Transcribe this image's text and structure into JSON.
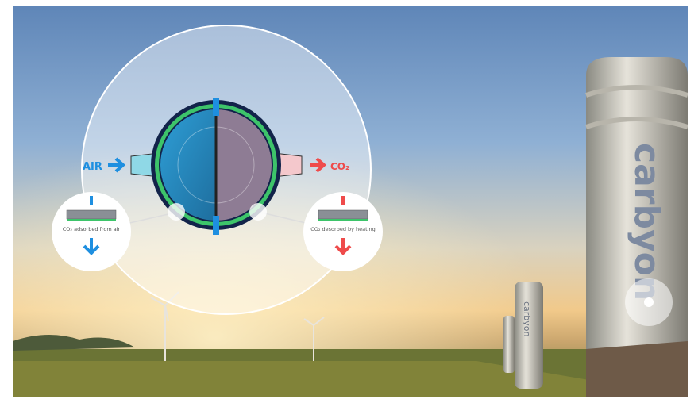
{
  "labels": {
    "air": "AIR",
    "co2": "CO₂",
    "adsorbed": "CO₂ adsorbed from air",
    "desorbed": "CO₂ desorbed by heating"
  },
  "towers": {
    "brand_large": "carbyon",
    "brand_small": "carbyon"
  }
}
